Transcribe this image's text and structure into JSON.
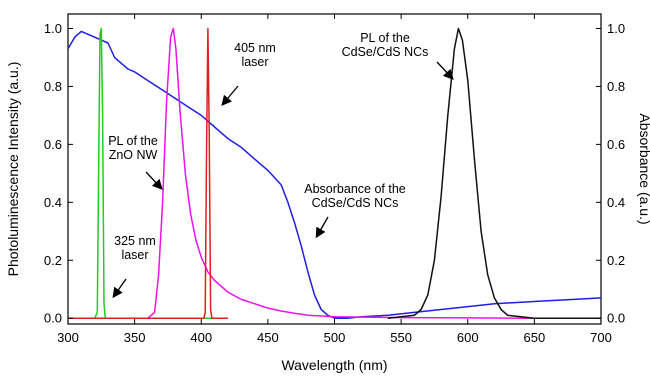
{
  "chart_data": {
    "type": "line",
    "xlabel": "Wavelength (nm)",
    "ylabel_left": "Photoluminescence Intensity (a.u.)",
    "ylabel_right": "Absorbance (a.u.)",
    "xlim": [
      300,
      700
    ],
    "ylim_left": [
      -0.02,
      1.05
    ],
    "ylim_right": [
      -0.02,
      1.05
    ],
    "x_ticks": [
      "300",
      "350",
      "400",
      "450",
      "500",
      "550",
      "600",
      "650",
      "700"
    ],
    "y_ticks_left": [
      "0.0",
      "0.2",
      "0.4",
      "0.6",
      "0.8",
      "1.0"
    ],
    "y_ticks_right": [
      "0.0",
      "0.2",
      "0.4",
      "0.6",
      "0.8",
      "1.0"
    ],
    "grid": false,
    "legend": "none",
    "series": [
      {
        "color": "#1f1fe0",
        "x": [
          300,
          305,
          310,
          315,
          320,
          325,
          330,
          335,
          340,
          345,
          350,
          360,
          370,
          380,
          390,
          400,
          410,
          420,
          430,
          440,
          450,
          460,
          465,
          470,
          475,
          480,
          485,
          490,
          495,
          500,
          510,
          520,
          540,
          560,
          580,
          600,
          620,
          640,
          660,
          680,
          700
        ],
        "y": [
          0.93,
          0.97,
          0.99,
          0.98,
          0.97,
          0.96,
          0.95,
          0.9,
          0.88,
          0.86,
          0.85,
          0.82,
          0.79,
          0.76,
          0.73,
          0.7,
          0.66,
          0.62,
          0.59,
          0.55,
          0.51,
          0.46,
          0.4,
          0.33,
          0.25,
          0.16,
          0.08,
          0.03,
          0.01,
          0.0,
          0.0,
          0.005,
          0.01,
          0.02,
          0.03,
          0.04,
          0.05,
          0.055,
          0.06,
          0.065,
          0.07
        ]
      },
      {
        "color": "#22cc22",
        "x": [
          300,
          320,
          322,
          323,
          324,
          325,
          326,
          327,
          328,
          340,
          400,
          412
        ],
        "y": [
          0,
          0,
          0.02,
          0.5,
          0.98,
          1.0,
          0.7,
          0.05,
          0,
          0,
          0,
          0
        ]
      },
      {
        "color": "#ee11ee",
        "x": [
          300,
          360,
          365,
          368,
          371,
          374,
          377,
          379,
          381,
          384,
          388,
          392,
          396,
          400,
          405,
          410,
          420,
          430,
          440,
          450,
          460,
          470,
          480,
          500,
          550,
          600,
          650,
          700
        ],
        "y": [
          0,
          0,
          0.02,
          0.15,
          0.4,
          0.75,
          0.97,
          1.0,
          0.93,
          0.72,
          0.5,
          0.36,
          0.27,
          0.21,
          0.16,
          0.13,
          0.09,
          0.065,
          0.05,
          0.035,
          0.025,
          0.017,
          0.01,
          0.005,
          0.002,
          0.001,
          0,
          0
        ]
      },
      {
        "color": "#dd2020",
        "x": [
          300,
          402,
          403,
          404,
          405,
          406,
          407,
          408,
          420
        ],
        "y": [
          0,
          0,
          0.02,
          0.6,
          1.0,
          0.65,
          0.03,
          0,
          0
        ]
      },
      {
        "color": "#111111",
        "x": [
          540,
          560,
          565,
          570,
          575,
          580,
          585,
          590,
          593,
          596,
          600,
          605,
          610,
          615,
          620,
          625,
          630,
          640,
          650,
          700
        ],
        "y": [
          0,
          0.01,
          0.03,
          0.08,
          0.2,
          0.42,
          0.7,
          0.93,
          1.0,
          0.96,
          0.82,
          0.55,
          0.3,
          0.15,
          0.07,
          0.03,
          0.01,
          0.005,
          0,
          0
        ]
      }
    ],
    "annotations": [
      {
        "id": "pl-nc",
        "lines": [
          "PL of the",
          "CdSe/CdS NCs"
        ]
      },
      {
        "id": "laser405",
        "lines": [
          "405 nm",
          "laser"
        ]
      },
      {
        "id": "pl-zno",
        "lines": [
          "PL of the",
          "ZnO NW"
        ]
      },
      {
        "id": "abs-nc",
        "lines": [
          "Absorbance of the",
          "CdSe/CdS NCs"
        ]
      },
      {
        "id": "laser325",
        "lines": [
          "325 nm",
          "laser"
        ]
      }
    ]
  }
}
